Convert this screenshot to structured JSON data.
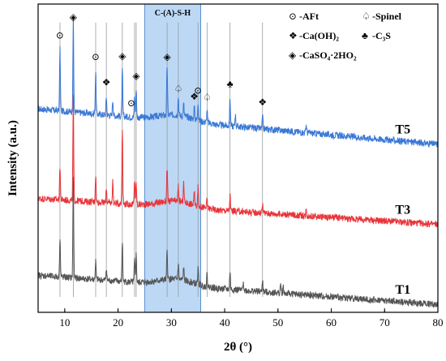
{
  "chart_data": {
    "type": "line",
    "xlabel": "2θ (°)",
    "ylabel": "Intensity (a.u.)",
    "xlim": [
      5,
      80
    ],
    "xticks": [
      10,
      20,
      30,
      40,
      50,
      60,
      70,
      80
    ],
    "grid": false,
    "shaded_region": {
      "label": "C-(A)-S-H",
      "x_range": [
        25,
        35.5
      ],
      "color": "#bcd8f5"
    },
    "reference_lines_x": [
      9.1,
      11.6,
      15.8,
      17.8,
      20.8,
      23.1,
      23.4,
      29.2,
      31.3,
      35.0,
      36.7,
      41.0,
      47.1
    ],
    "series": [
      {
        "name": "T5",
        "color": "#3a78d6",
        "baseline_start": 0.66,
        "baseline_end": 0.545,
        "peaks": [
          {
            "x": 9.1,
            "h": 0.2
          },
          {
            "x": 11.6,
            "h": 0.3
          },
          {
            "x": 15.8,
            "h": 0.14
          },
          {
            "x": 17.8,
            "h": 0.06
          },
          {
            "x": 19.0,
            "h": 0.05
          },
          {
            "x": 20.8,
            "h": 0.15
          },
          {
            "x": 23.1,
            "h": 0.07
          },
          {
            "x": 23.4,
            "h": 0.09
          },
          {
            "x": 29.2,
            "h": 0.16
          },
          {
            "x": 31.3,
            "h": 0.06
          },
          {
            "x": 32.3,
            "h": 0.04
          },
          {
            "x": 34.3,
            "h": 0.04
          },
          {
            "x": 35.0,
            "h": 0.06
          },
          {
            "x": 36.7,
            "h": 0.04
          },
          {
            "x": 41.0,
            "h": 0.09
          },
          {
            "x": 42.0,
            "h": 0.04
          },
          {
            "x": 47.1,
            "h": 0.04
          },
          {
            "x": 55.3,
            "h": 0.025
          }
        ]
      },
      {
        "name": "T3",
        "color": "#e8353a",
        "baseline_start": 0.37,
        "baseline_end": 0.285,
        "peaks": [
          {
            "x": 9.1,
            "h": 0.11
          },
          {
            "x": 11.6,
            "h": 0.34
          },
          {
            "x": 15.8,
            "h": 0.09
          },
          {
            "x": 17.8,
            "h": 0.05
          },
          {
            "x": 19.0,
            "h": 0.07
          },
          {
            "x": 20.8,
            "h": 0.25
          },
          {
            "x": 23.1,
            "h": 0.08
          },
          {
            "x": 23.4,
            "h": 0.07
          },
          {
            "x": 29.2,
            "h": 0.11
          },
          {
            "x": 31.3,
            "h": 0.05
          },
          {
            "x": 32.3,
            "h": 0.06
          },
          {
            "x": 34.3,
            "h": 0.04
          },
          {
            "x": 35.0,
            "h": 0.06
          },
          {
            "x": 36.7,
            "h": 0.03
          },
          {
            "x": 41.0,
            "h": 0.05
          },
          {
            "x": 47.1,
            "h": 0.03
          },
          {
            "x": 55.3,
            "h": 0.02
          }
        ]
      },
      {
        "name": "T1",
        "color": "#555555",
        "baseline_start": 0.12,
        "baseline_end": 0.025,
        "peaks": [
          {
            "x": 9.1,
            "h": 0.13
          },
          {
            "x": 11.6,
            "h": 0.33
          },
          {
            "x": 15.8,
            "h": 0.06
          },
          {
            "x": 17.8,
            "h": 0.04
          },
          {
            "x": 20.8,
            "h": 0.13
          },
          {
            "x": 23.1,
            "h": 0.07
          },
          {
            "x": 23.4,
            "h": 0.09
          },
          {
            "x": 29.2,
            "h": 0.09
          },
          {
            "x": 31.3,
            "h": 0.05
          },
          {
            "x": 32.3,
            "h": 0.04
          },
          {
            "x": 35.0,
            "h": 0.05
          },
          {
            "x": 36.7,
            "h": 0.04
          },
          {
            "x": 41.0,
            "h": 0.06
          },
          {
            "x": 43.5,
            "h": 0.03
          },
          {
            "x": 47.1,
            "h": 0.04
          },
          {
            "x": 50.5,
            "h": 0.03
          },
          {
            "x": 51.0,
            "h": 0.02
          }
        ]
      }
    ],
    "legend": {
      "placement": "top-right",
      "entries": [
        {
          "symbol": "⊙",
          "label": "-AFt"
        },
        {
          "symbol": "♤",
          "label": "-Spinel"
        },
        {
          "symbol": "❖",
          "label": "-Ca(OH)₂"
        },
        {
          "symbol": "♣",
          "label": "-C₃S"
        },
        {
          "symbol": "◈",
          "label": "-CaSO₄·2HO₂"
        }
      ]
    },
    "peak_markers": [
      {
        "symbol": "⊙",
        "x": 9.1
      },
      {
        "symbol": "◈",
        "x": 11.6
      },
      {
        "symbol": "⊙",
        "x": 15.8
      },
      {
        "symbol": "❖",
        "x": 17.8
      },
      {
        "symbol": "◈",
        "x": 20.8
      },
      {
        "symbol": "⊙",
        "x": 22.5
      },
      {
        "symbol": "◈",
        "x": 23.4
      },
      {
        "symbol": "◈",
        "x": 29.2
      },
      {
        "symbol": "♤",
        "x": 31.3
      },
      {
        "symbol": "❖",
        "x": 34.3
      },
      {
        "symbol": "⊙",
        "x": 35.0
      },
      {
        "symbol": "♤",
        "x": 36.7
      },
      {
        "symbol": "♣",
        "x": 41.0
      },
      {
        "symbol": "❖",
        "x": 47.1
      }
    ]
  }
}
